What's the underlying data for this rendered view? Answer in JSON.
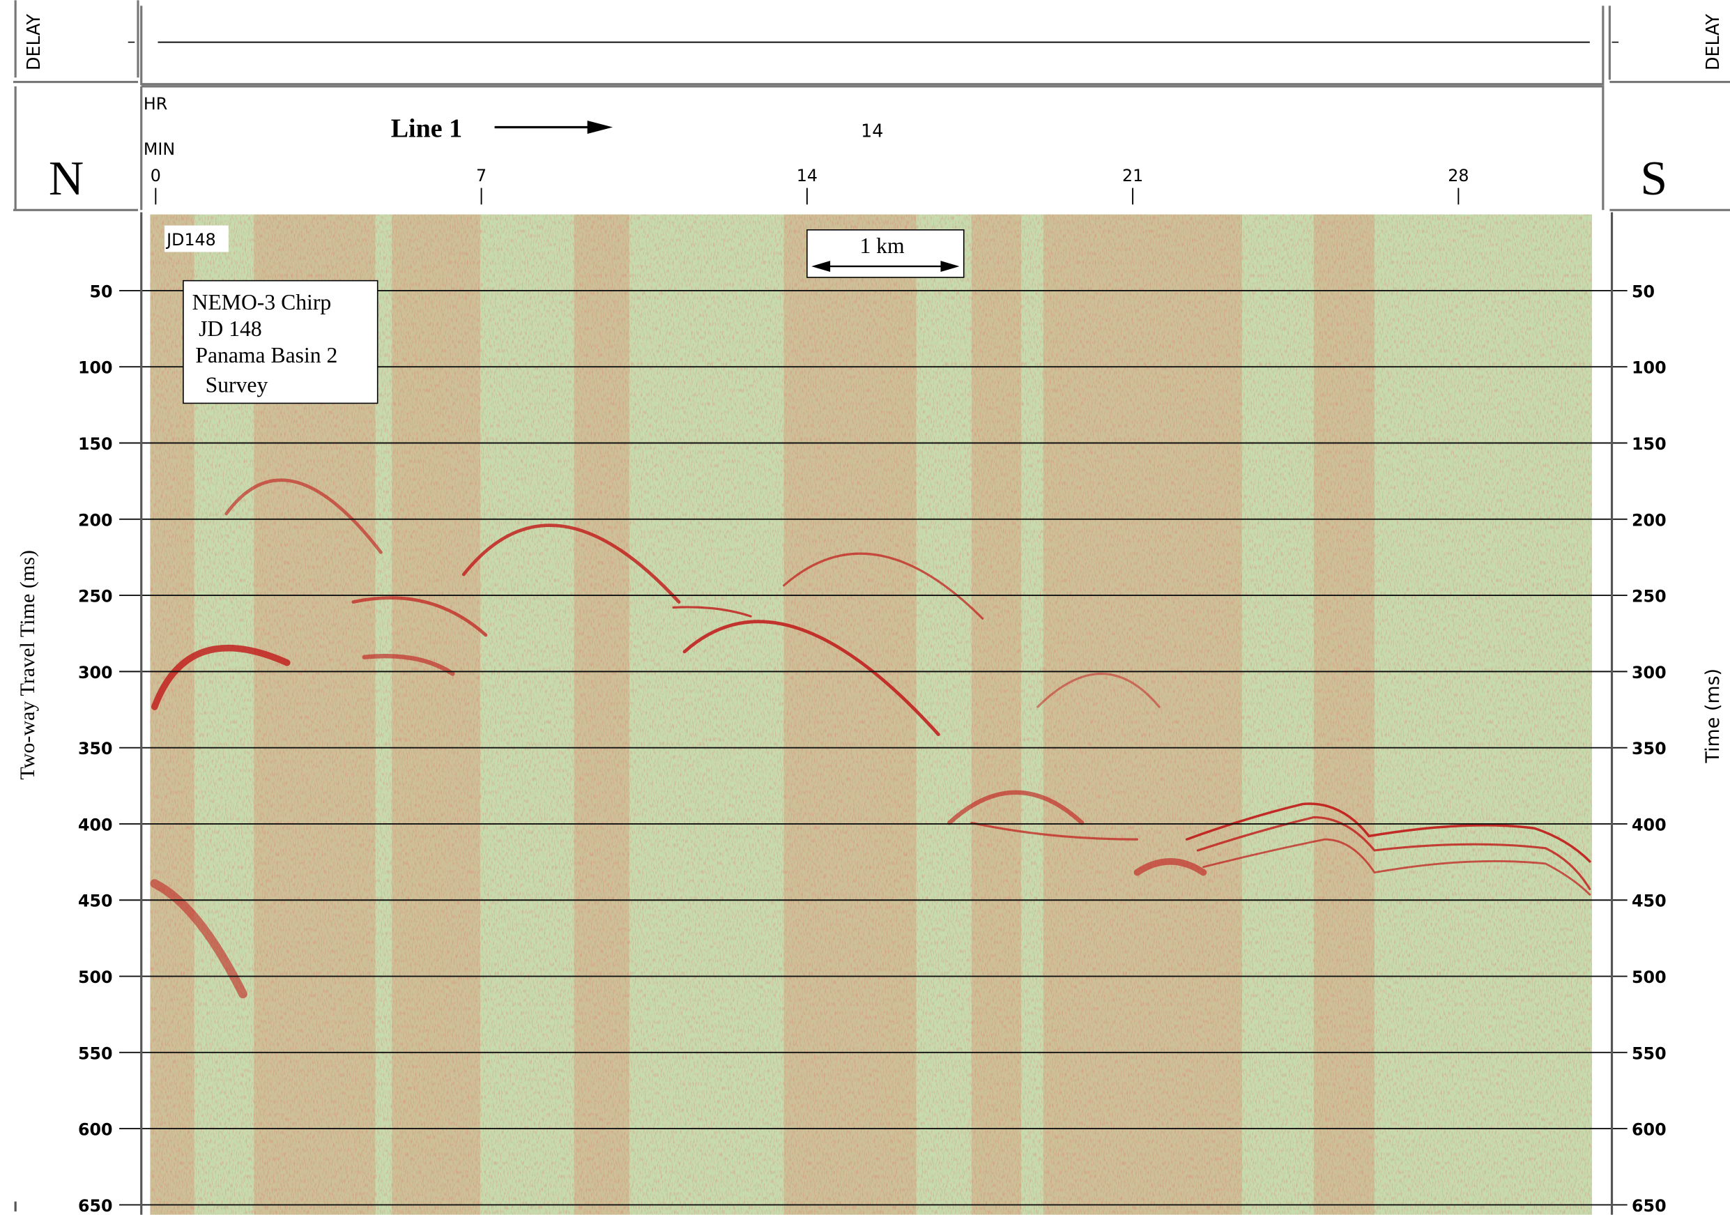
{
  "header": {
    "delay_left": "DELAY",
    "delay_right": "DELAY",
    "hour_label": "HR",
    "minute_label": "MIN",
    "line_label": "Line 1",
    "hour_value": "14",
    "north": "N",
    "south": "S"
  },
  "minute_ticks": [
    0,
    7,
    14,
    21,
    28
  ],
  "day_label": "JD148",
  "scale_label": "1 km",
  "info_box": [
    "NEMO-3 Chirp",
    "JD 148",
    "Panama Basin 2",
    "Survey"
  ],
  "time_ticks": [
    50,
    100,
    150,
    200,
    250,
    300,
    350,
    400,
    450,
    500,
    550,
    600,
    650
  ],
  "left_axis_title": "Two-way Travel Time (ms)",
  "right_axis_title": "Time (ms)"
}
